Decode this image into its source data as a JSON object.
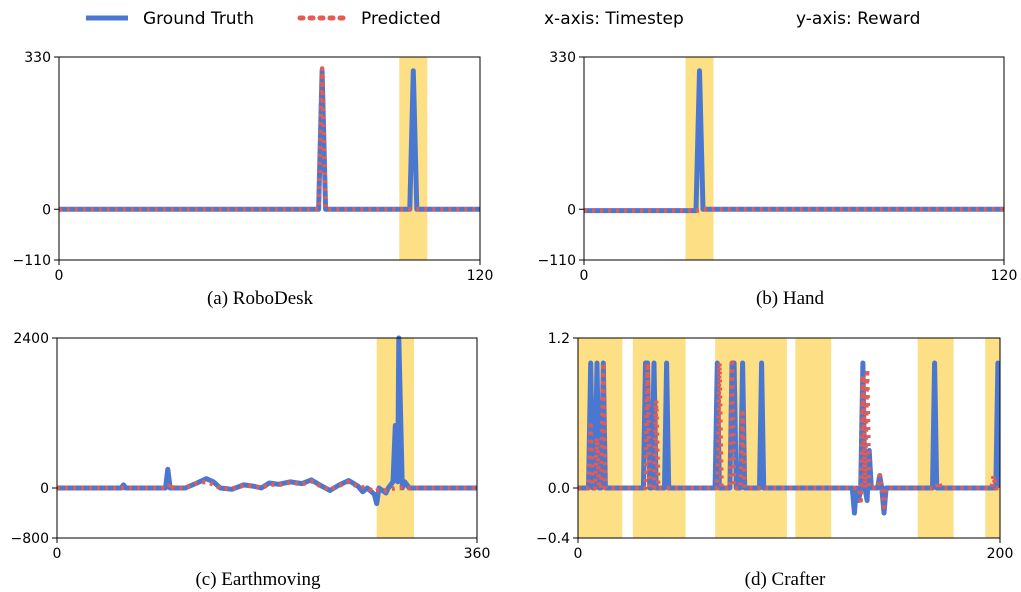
{
  "legend": {
    "items": [
      {
        "label": "Ground Truth",
        "color": "#4a78d0",
        "style": "solid"
      },
      {
        "label": "Predicted",
        "color": "#e35b53",
        "style": "dotted"
      }
    ],
    "x_axis_note": "x-axis: Timestep",
    "y_axis_note": "y-axis: Reward"
  },
  "colors": {
    "highlight": "#fddf86",
    "ground_truth": "#4a78d0",
    "predicted": "#e35b53"
  },
  "chart_data": [
    {
      "type": "line",
      "caption": "(a) RoboDesk",
      "xlim": [
        0,
        120
      ],
      "ylim": [
        -110,
        330
      ],
      "xticks": [
        "0",
        "120"
      ],
      "yticks": [
        "330",
        "0",
        "−110"
      ],
      "ytick_values": [
        330,
        0,
        -110
      ],
      "highlight_spans": [
        [
          97,
          105
        ]
      ],
      "series": [
        {
          "name": "Ground Truth",
          "points": [
            [
              0,
              0
            ],
            [
              74,
              0
            ],
            [
              75,
              300
            ],
            [
              76,
              0
            ],
            [
              100,
              0
            ],
            [
              101,
              300
            ],
            [
              102,
              0
            ],
            [
              120,
              0
            ]
          ]
        },
        {
          "name": "Predicted",
          "points": [
            [
              0,
              0
            ],
            [
              74,
              0
            ],
            [
              75,
              305
            ],
            [
              76,
              0
            ],
            [
              120,
              0
            ]
          ]
        }
      ]
    },
    {
      "type": "line",
      "caption": "(b) Hand",
      "xlim": [
        0,
        120
      ],
      "ylim": [
        -110,
        330
      ],
      "xticks": [
        "0",
        "120"
      ],
      "yticks": [
        "330",
        "0",
        "−110"
      ],
      "ytick_values": [
        330,
        0,
        -110
      ],
      "highlight_spans": [
        [
          29,
          37
        ]
      ],
      "series": [
        {
          "name": "Ground Truth",
          "points": [
            [
              0,
              -3
            ],
            [
              32,
              -3
            ],
            [
              33,
              300
            ],
            [
              34,
              0
            ],
            [
              120,
              0
            ]
          ]
        },
        {
          "name": "Predicted",
          "points": [
            [
              0,
              -3
            ],
            [
              32,
              -3
            ],
            [
              33,
              -2
            ],
            [
              34,
              0
            ],
            [
              120,
              0
            ]
          ]
        }
      ]
    },
    {
      "type": "line",
      "caption": "(c) Earthmoving",
      "xlim": [
        0,
        360
      ],
      "ylim": [
        -800,
        2400
      ],
      "xticks": [
        "0",
        "360"
      ],
      "yticks": [
        "2400",
        "0",
        "−800"
      ],
      "ytick_values": [
        2400,
        0,
        -800
      ],
      "highlight_spans": [
        [
          274,
          306
        ]
      ],
      "series": [
        {
          "name": "Ground Truth",
          "points": [
            [
              0,
              0
            ],
            [
              55,
              0
            ],
            [
              57,
              50
            ],
            [
              59,
              0
            ],
            [
              93,
              0
            ],
            [
              95,
              300
            ],
            [
              97,
              0
            ],
            [
              110,
              0
            ],
            [
              120,
              80
            ],
            [
              128,
              150
            ],
            [
              134,
              100
            ],
            [
              140,
              0
            ],
            [
              150,
              -20
            ],
            [
              160,
              50
            ],
            [
              168,
              30
            ],
            [
              175,
              0
            ],
            [
              182,
              80
            ],
            [
              190,
              60
            ],
            [
              200,
              100
            ],
            [
              210,
              70
            ],
            [
              218,
              130
            ],
            [
              226,
              40
            ],
            [
              234,
              -40
            ],
            [
              242,
              50
            ],
            [
              250,
              120
            ],
            [
              258,
              30
            ],
            [
              262,
              -60
            ],
            [
              266,
              0
            ],
            [
              272,
              -100
            ],
            [
              274,
              -250
            ],
            [
              276,
              0
            ],
            [
              282,
              -80
            ],
            [
              284,
              0
            ],
            [
              288,
              100
            ],
            [
              290,
              1000
            ],
            [
              292,
              100
            ],
            [
              293,
              2400
            ],
            [
              296,
              0
            ],
            [
              298,
              100
            ],
            [
              302,
              0
            ],
            [
              360,
              0
            ]
          ]
        },
        {
          "name": "Predicted",
          "points": [
            [
              0,
              0
            ],
            [
              95,
              0
            ],
            [
              98,
              80
            ],
            [
              100,
              0
            ],
            [
              110,
              0
            ],
            [
              120,
              80
            ],
            [
              128,
              100
            ],
            [
              134,
              60
            ],
            [
              140,
              0
            ],
            [
              150,
              -10
            ],
            [
              160,
              40
            ],
            [
              168,
              30
            ],
            [
              175,
              0
            ],
            [
              182,
              60
            ],
            [
              190,
              50
            ],
            [
              200,
              90
            ],
            [
              210,
              60
            ],
            [
              218,
              110
            ],
            [
              226,
              30
            ],
            [
              234,
              -30
            ],
            [
              242,
              40
            ],
            [
              250,
              100
            ],
            [
              258,
              20
            ],
            [
              266,
              0
            ],
            [
              272,
              -60
            ],
            [
              276,
              -30
            ],
            [
              282,
              -40
            ],
            [
              290,
              0
            ],
            [
              360,
              0
            ]
          ]
        }
      ]
    },
    {
      "type": "line",
      "caption": "(d) Crafter",
      "xlim": [
        0,
        200
      ],
      "ylim": [
        -0.4,
        1.2
      ],
      "xticks": [
        "0",
        "200"
      ],
      "yticks": [
        "1.2",
        "0.0",
        "−0.4"
      ],
      "ytick_values": [
        1.2,
        0.0,
        -0.4
      ],
      "highlight_spans": [
        [
          0,
          21
        ],
        [
          26,
          51
        ],
        [
          65,
          99
        ],
        [
          103,
          120
        ],
        [
          161,
          178
        ],
        [
          193,
          200
        ]
      ],
      "series": [
        {
          "name": "Ground Truth",
          "points": [
            [
              0,
              0
            ],
            [
              5,
              0
            ],
            [
              6,
              1
            ],
            [
              7,
              0
            ],
            [
              8,
              0
            ],
            [
              9,
              1
            ],
            [
              10,
              0
            ],
            [
              11,
              0
            ],
            [
              12,
              1
            ],
            [
              13,
              0
            ],
            [
              31,
              0
            ],
            [
              32,
              1
            ],
            [
              33,
              1
            ],
            [
              34,
              0
            ],
            [
              35,
              0
            ],
            [
              36,
              1
            ],
            [
              37,
              0
            ],
            [
              41,
              0
            ],
            [
              42,
              1
            ],
            [
              43,
              0
            ],
            [
              65,
              0
            ],
            [
              66,
              1
            ],
            [
              67,
              0
            ],
            [
              72,
              0
            ],
            [
              73,
              1
            ],
            [
              74,
              1
            ],
            [
              75,
              0
            ],
            [
              77,
              0
            ],
            [
              78,
              1
            ],
            [
              79,
              0
            ],
            [
              86,
              0
            ],
            [
              87,
              1
            ],
            [
              88,
              0
            ],
            [
              120,
              0
            ],
            [
              130,
              0
            ],
            [
              131,
              -0.2
            ],
            [
              132,
              0
            ],
            [
              133,
              -0.1
            ],
            [
              134,
              0
            ],
            [
              135,
              1
            ],
            [
              136,
              0
            ],
            [
              137,
              -0.1
            ],
            [
              138,
              0.3
            ],
            [
              139,
              0
            ],
            [
              142,
              0
            ],
            [
              143,
              0.1
            ],
            [
              144,
              0
            ],
            [
              145,
              -0.2
            ],
            [
              146,
              0
            ],
            [
              150,
              0
            ],
            [
              168,
              0
            ],
            [
              169,
              1
            ],
            [
              170,
              0
            ],
            [
              198,
              0
            ],
            [
              199,
              1
            ],
            [
              200,
              0
            ]
          ]
        },
        {
          "name": "Predicted",
          "points": [
            [
              0,
              0
            ],
            [
              5,
              0
            ],
            [
              6,
              0.5
            ],
            [
              7,
              0
            ],
            [
              8,
              0
            ],
            [
              9,
              0.4
            ],
            [
              10,
              0
            ],
            [
              11,
              0
            ],
            [
              12,
              1
            ],
            [
              13,
              0
            ],
            [
              32,
              0
            ],
            [
              33,
              1
            ],
            [
              34,
              0
            ],
            [
              36,
              0
            ],
            [
              37,
              0.7
            ],
            [
              38,
              0
            ],
            [
              66,
              0
            ],
            [
              67,
              1
            ],
            [
              68,
              0
            ],
            [
              72,
              0
            ],
            [
              73,
              1
            ],
            [
              74,
              0
            ],
            [
              77,
              0
            ],
            [
              78,
              0.6
            ],
            [
              79,
              0
            ],
            [
              133,
              0
            ],
            [
              134,
              -0.1
            ],
            [
              135,
              0.9
            ],
            [
              136,
              0
            ],
            [
              137,
              0.95
            ],
            [
              138,
              0
            ],
            [
              142,
              0
            ],
            [
              143,
              0.1
            ],
            [
              144,
              0
            ],
            [
              145,
              -0.15
            ],
            [
              146,
              0
            ],
            [
              170,
              0
            ],
            [
              171,
              0.05
            ],
            [
              172,
              0
            ],
            [
              196,
              0
            ],
            [
              197,
              0.1
            ],
            [
              198,
              0
            ],
            [
              200,
              0
            ]
          ]
        }
      ]
    }
  ]
}
